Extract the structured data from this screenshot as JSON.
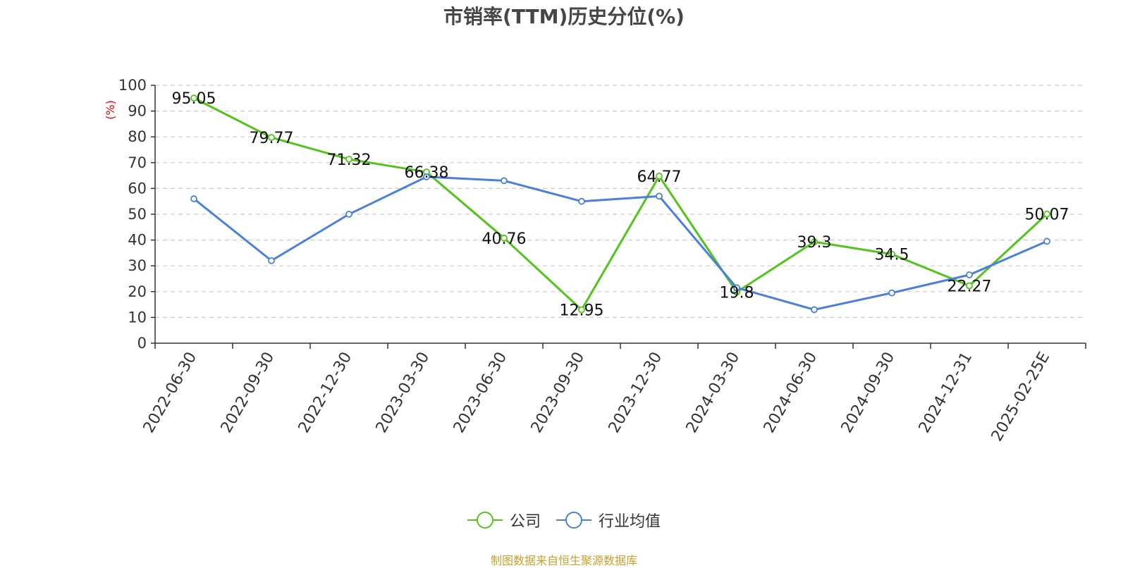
{
  "title": "市销率(TTM)历史分位(%)",
  "footer": "制图数据来自恒生聚源数据库",
  "chart_data": {
    "type": "line",
    "categories": [
      "2022-06-30",
      "2022-09-30",
      "2022-12-30",
      "2023-03-30",
      "2023-06-30",
      "2023-09-30",
      "2023-12-30",
      "2024-03-30",
      "2024-06-30",
      "2024-09-30",
      "2024-12-31",
      "2025-02-25E"
    ],
    "ylabel": "(%)",
    "ylim": [
      0,
      100
    ],
    "yticks": [
      0,
      10,
      20,
      30,
      40,
      50,
      60,
      70,
      80,
      90,
      100
    ],
    "grid": true,
    "legend_position": "bottom-center",
    "series": [
      {
        "name": "公司",
        "color": "#52c41a",
        "values": [
          95.05,
          79.77,
          71.32,
          66.38,
          40.76,
          12.95,
          64.77,
          19.8,
          39.3,
          34.5,
          22.27,
          50.07
        ],
        "labels": [
          "95.05",
          "79.77",
          "71.32",
          "66.38",
          "40.76",
          "12.95",
          "64.77",
          "19.8",
          "39.3",
          "34.5",
          "22.27",
          "50.07"
        ]
      },
      {
        "name": "行业均值",
        "color": "#4a80dc",
        "values": [
          56,
          32,
          50,
          64.5,
          63,
          55,
          57,
          21.5,
          13,
          19.5,
          26.5,
          39.5
        ]
      }
    ]
  }
}
